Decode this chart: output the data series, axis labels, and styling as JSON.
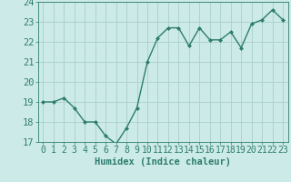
{
  "x": [
    0,
    1,
    2,
    3,
    4,
    5,
    6,
    7,
    8,
    9,
    10,
    11,
    12,
    13,
    14,
    15,
    16,
    17,
    18,
    19,
    20,
    21,
    22,
    23
  ],
  "y": [
    19.0,
    19.0,
    19.2,
    18.7,
    18.0,
    18.0,
    17.3,
    16.9,
    17.7,
    18.7,
    21.0,
    22.2,
    22.7,
    22.7,
    21.8,
    22.7,
    22.1,
    22.1,
    22.5,
    21.7,
    22.9,
    23.1,
    23.6,
    23.1
  ],
  "line_color": "#2d7d6e",
  "marker": "D",
  "marker_size": 2.0,
  "bg_color": "#cceae7",
  "grid_color": "#aacfcc",
  "xlabel": "Humidex (Indice chaleur)",
  "xlim": [
    -0.5,
    23.5
  ],
  "ylim": [
    17,
    24
  ],
  "yticks": [
    17,
    18,
    19,
    20,
    21,
    22,
    23,
    24
  ],
  "xticks": [
    0,
    1,
    2,
    3,
    4,
    5,
    6,
    7,
    8,
    9,
    10,
    11,
    12,
    13,
    14,
    15,
    16,
    17,
    18,
    19,
    20,
    21,
    22,
    23
  ],
  "xlabel_fontsize": 7.5,
  "tick_fontsize": 7.5,
  "line_width": 1.0
}
